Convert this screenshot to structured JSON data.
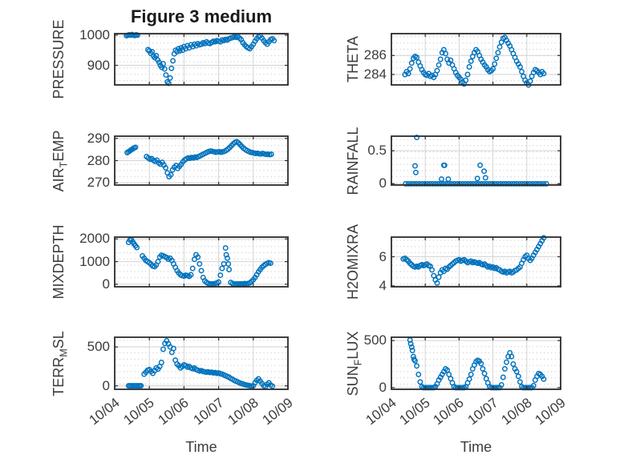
{
  "figure": {
    "title": "Figure 3 medium",
    "xlabel_left": "Time",
    "xlabel_right": "Time",
    "marker_color": "#0072BD",
    "axis_color": "#2b2b2b",
    "major_grid_color": "#d4d4d4",
    "minor_dot_color": "#b9b9b9",
    "xtick_labels": [
      "10/04",
      "10/05",
      "10/06",
      "10/07",
      "10/08",
      "10/09"
    ]
  },
  "chart_data": [
    {
      "name": "pressure",
      "type": "scatter",
      "row": 0,
      "col": 0,
      "label_parts": [
        {
          "t": "PRESSURE",
          "sub": false
        }
      ],
      "yticks": [
        900,
        1000
      ],
      "ylim": [
        835,
        1005
      ],
      "xlim_days": [
        0,
        5
      ],
      "segments": [
        {
          "t0": 0.34,
          "dt": 0.04,
          "y": [
            998,
            1000,
            1001,
            1000,
            1002,
            1000,
            999,
            1001,
            1000
          ]
        },
        {
          "t0": 0.96,
          "dt": 0.04,
          "y": [
            952,
            948,
            940,
            945,
            930,
            925,
            932,
            918,
            910,
            900,
            893,
            905,
            888,
            868,
            845,
            840,
            858,
            890,
            915,
            938,
            950,
            945,
            955,
            948,
            958,
            950
          ]
        },
        {
          "t0": 2.0,
          "dt": 0.05,
          "y": [
            962,
            955,
            965,
            958,
            968,
            962,
            970,
            965,
            972,
            968,
            970,
            975,
            972,
            978,
            974,
            972,
            976,
            980,
            978,
            982
          ]
        },
        {
          "t0": 3.0,
          "dt": 0.05,
          "y": [
            980,
            978,
            984,
            982,
            986,
            984,
            988,
            990,
            992,
            995,
            993,
            996,
            990,
            985,
            975,
            968,
            962,
            958,
            955,
            962
          ]
        },
        {
          "t0": 4.0,
          "dt": 0.05,
          "y": [
            970,
            980,
            988,
            995,
            998,
            990,
            982,
            975,
            970,
            978,
            985,
            988,
            982
          ]
        }
      ],
      "points": []
    },
    {
      "name": "theta",
      "type": "scatter",
      "row": 0,
      "col": 1,
      "label_parts": [
        {
          "t": "THETA",
          "sub": false
        }
      ],
      "yticks": [
        284,
        286
      ],
      "ylim": [
        282.9,
        288.3
      ],
      "xlim_days": [
        0,
        5
      ],
      "segments": [
        {
          "t0": 0.4,
          "dt": 0.05,
          "y": [
            284.0,
            284.3,
            284.1,
            284.6,
            285.2,
            285.7,
            285.9,
            285.8,
            285.3,
            284.9,
            284.5,
            284.2,
            284.0,
            283.9,
            284.1,
            283.8,
            283.9,
            283.7,
            284.0,
            284.4,
            285.0,
            285.6,
            286.3,
            286.6,
            286.2,
            285.6,
            285.2,
            285.5,
            285.0,
            284.6,
            284.2,
            283.9,
            283.7,
            283.5,
            283.2,
            283.0,
            283.4,
            284.0,
            284.8,
            285.4,
            285.9,
            286.3,
            286.6,
            286.4,
            286.0,
            285.6,
            285.3,
            285.0,
            284.8,
            284.5,
            284.3,
            284.4,
            284.6,
            285.1,
            285.7,
            286.3,
            286.9,
            287.4,
            287.8,
            287.9,
            287.6,
            287.3,
            287.0,
            286.6,
            286.2,
            285.8,
            285.4,
            285.1,
            284.8,
            284.3,
            283.8,
            283.4,
            283.1,
            282.9,
            283.3,
            283.8,
            284.2,
            284.5,
            284.4,
            284.2,
            284.0,
            284.3,
            284.1
          ]
        }
      ],
      "points": []
    },
    {
      "name": "air-temp",
      "type": "scatter",
      "row": 1,
      "col": 0,
      "label_parts": [
        {
          "t": "AIR",
          "sub": false
        },
        {
          "t": "T",
          "sub": true
        },
        {
          "t": "EMP",
          "sub": false
        }
      ],
      "yticks": [
        270,
        280,
        290
      ],
      "ylim": [
        269,
        291
      ],
      "xlim_days": [
        0,
        5
      ],
      "segments": [
        {
          "t0": 0.36,
          "dt": 0.04,
          "y": [
            283.6,
            284.0,
            284.4,
            284.9,
            285.3,
            285.7,
            286.0
          ]
        },
        {
          "t0": 0.92,
          "dt": 0.05,
          "y": [
            281.8,
            281.2,
            280.6,
            280.9,
            280.1,
            279.6,
            280.2,
            279.0,
            278.4,
            279.2,
            278.0,
            276.8,
            274.5,
            272.8,
            273.6,
            275.8,
            277.0,
            277.8,
            276.5,
            277.4,
            278.3,
            279.5,
            280.3,
            280.8,
            281.2,
            281.0,
            281.4,
            281.2,
            281.6,
            281.4,
            281.8,
            282.2,
            282.6,
            283.0,
            283.4,
            283.8,
            284.1,
            284.3,
            284.2,
            284.0,
            283.8,
            283.9,
            284.0,
            283.8,
            284.0,
            284.2,
            284.6,
            285.2,
            285.9,
            286.7,
            287.5,
            288.2,
            288.5,
            288.0,
            287.2,
            286.4,
            285.6,
            285.0,
            284.5,
            284.1,
            283.8,
            283.6,
            283.4,
            283.2,
            283.3,
            283.1,
            283.0,
            283.2,
            283.0,
            282.8,
            282.9,
            282.7,
            282.9
          ]
        }
      ],
      "points": []
    },
    {
      "name": "rainfall",
      "type": "scatter",
      "row": 1,
      "col": 1,
      "label_parts": [
        {
          "t": "RAINFALL",
          "sub": false
        }
      ],
      "yticks": [
        0,
        0.5
      ],
      "ylim": [
        -0.02,
        0.72
      ],
      "xlim_days": [
        0,
        5
      ],
      "segments": [
        {
          "t0": 0.42,
          "dt": 0.08,
          "y": [
            0,
            0,
            0,
            0,
            0,
            0,
            0,
            0,
            0,
            0,
            0,
            0,
            0,
            0,
            0,
            0,
            0,
            0,
            0,
            0,
            0,
            0,
            0,
            0,
            0,
            0,
            0,
            0,
            0,
            0,
            0,
            0,
            0,
            0,
            0,
            0,
            0,
            0,
            0,
            0,
            0,
            0,
            0,
            0,
            0,
            0,
            0,
            0,
            0,
            0,
            0,
            0,
            0
          ]
        }
      ],
      "points": [
        [
          0.7,
          0.27
        ],
        [
          0.72,
          0.17
        ],
        [
          0.75,
          0.7
        ],
        [
          1.48,
          0.07
        ],
        [
          1.55,
          0.28
        ],
        [
          1.57,
          0.28
        ],
        [
          1.68,
          0.07
        ],
        [
          2.54,
          0.08
        ],
        [
          2.62,
          0.28
        ],
        [
          2.74,
          0.19
        ],
        [
          2.78,
          0.09
        ]
      ]
    },
    {
      "name": "mixdepth",
      "type": "scatter",
      "row": 2,
      "col": 0,
      "label_parts": [
        {
          "t": "MIXDEPTH",
          "sub": false
        }
      ],
      "yticks": [
        0,
        1000,
        2000
      ],
      "ylim": [
        -110,
        2080
      ],
      "xlim_days": [
        0,
        5
      ],
      "segments": [
        {
          "t0": 0.4,
          "dt": 0.04,
          "y": [
            1850,
            1950,
            1980,
            1870,
            1780,
            1700,
            1620
          ]
        },
        {
          "t0": 0.8,
          "dt": 0.05,
          "y": [
            1250,
            1150,
            1050,
            1000,
            950,
            880,
            800,
            780,
            850,
            1000,
            1200,
            1280,
            1250,
            1220,
            1180,
            1100,
            1150,
            1050,
            900,
            750,
            600,
            500,
            420,
            380,
            360,
            400,
            380,
            350,
            420,
            700,
            1100,
            1300,
            1200,
            900,
            600,
            300,
            150,
            80,
            40,
            20,
            10,
            20,
            30,
            60,
            100,
            400,
            700,
            900
          ]
        },
        {
          "t0": 3.3,
          "dt": 0.05,
          "y": [
            650,
            80,
            30,
            10,
            10,
            20,
            10,
            20,
            10,
            30,
            20,
            40,
            60,
            120,
            200,
            300,
            420,
            550,
            650,
            750,
            820,
            880,
            920,
            950,
            930
          ]
        }
      ],
      "points": [
        [
          3.2,
          1600
        ],
        [
          3.22,
          1300
        ],
        [
          3.25,
          1150
        ],
        [
          3.28,
          900
        ]
      ]
    },
    {
      "name": "h2omixra",
      "type": "scatter",
      "row": 2,
      "col": 1,
      "label_parts": [
        {
          "t": "H2OMIXRA",
          "sub": false
        }
      ],
      "yticks": [
        4,
        6
      ],
      "ylim": [
        3.94,
        7.35
      ],
      "xlim_days": [
        0,
        5
      ],
      "segments": [
        {
          "t0": 0.35,
          "dt": 0.05,
          "y": [
            5.85,
            5.9,
            5.8,
            5.7,
            5.55,
            5.45,
            5.35,
            5.3,
            5.35,
            5.3,
            5.4,
            5.45,
            5.4,
            5.45,
            5.5,
            5.4,
            5.35,
            5.1,
            4.7,
            4.4,
            4.2,
            4.6,
            4.9,
            5.1,
            5.0,
            5.2,
            5.15,
            5.3,
            5.4,
            5.5,
            5.6,
            5.7,
            5.75,
            5.8,
            5.7,
            5.75,
            5.8,
            5.7,
            5.6,
            5.65,
            5.7,
            5.6,
            5.65,
            5.6,
            5.55,
            5.6,
            5.5,
            5.45,
            5.5,
            5.4,
            5.3,
            5.35,
            5.25,
            5.3,
            5.2,
            5.25,
            5.15,
            5.1,
            5.0,
            4.95,
            5.0,
            4.9,
            4.95,
            5.0,
            4.9,
            4.95,
            5.05,
            5.1,
            5.2,
            5.3,
            5.55,
            5.8,
            6.0,
            6.1,
            5.9,
            5.75,
            5.9,
            6.1,
            6.3,
            6.5,
            6.7,
            6.9,
            7.1,
            7.3
          ]
        }
      ],
      "points": []
    },
    {
      "name": "terr-msl",
      "type": "scatter",
      "row": 3,
      "col": 0,
      "label_parts": [
        {
          "t": "TERR",
          "sub": false
        },
        {
          "t": "M",
          "sub": true
        },
        {
          "t": "SL",
          "sub": false
        }
      ],
      "yticks": [
        0,
        500
      ],
      "ylim": [
        -45,
        625
      ],
      "xlim_days": [
        0,
        5
      ],
      "segments": [
        {
          "t0": 0.4,
          "dt": 0.04,
          "y": [
            0,
            0,
            0,
            0,
            0,
            0,
            0,
            0,
            0,
            0
          ]
        },
        {
          "t0": 0.85,
          "dt": 0.05,
          "y": [
            150,
            175,
            200,
            210,
            185,
            160,
            195,
            230,
            215,
            250,
            300,
            470,
            545,
            580,
            540,
            500,
            430,
            480,
            330,
            280,
            260,
            230,
            250,
            270,
            260,
            240,
            250,
            230,
            220,
            230,
            210,
            200,
            190,
            195,
            185,
            180,
            175,
            180,
            170,
            175,
            165,
            170,
            160,
            165,
            155,
            150,
            140,
            130,
            120,
            110,
            95,
            85,
            70,
            60,
            50,
            40,
            30,
            25,
            15,
            10,
            5,
            0,
            -5,
            0,
            40,
            70,
            90,
            60,
            30,
            0,
            -10,
            20,
            40,
            10,
            -5
          ]
        }
      ],
      "points": []
    },
    {
      "name": "sun-flux",
      "type": "scatter",
      "row": 3,
      "col": 1,
      "label_parts": [
        {
          "t": "SUN",
          "sub": false
        },
        {
          "t": "F",
          "sub": true
        },
        {
          "t": "LUX",
          "sub": false
        }
      ],
      "yticks": [
        0,
        500
      ],
      "ylim": [
        -18,
        535
      ],
      "xlim_days": [
        0,
        5
      ],
      "segments": [
        {
          "t0": 0.55,
          "dt": 0.05,
          "y": [
            505,
            430,
            330,
            285,
            230,
            140,
            60,
            10,
            0,
            0,
            0,
            0,
            0,
            0,
            0,
            10,
            40,
            80,
            110,
            140,
            170,
            200,
            185,
            140,
            95,
            50,
            10,
            0,
            0,
            0,
            0,
            0,
            0,
            10,
            50,
            90,
            140,
            200,
            240,
            275,
            290,
            280,
            255,
            200,
            150,
            95,
            50,
            10,
            0,
            0,
            0,
            0,
            0,
            0,
            30,
            110,
            200,
            270,
            330,
            370,
            330,
            250,
            200,
            170,
            120,
            60,
            10,
            0,
            0,
            0,
            0,
            0,
            0,
            20,
            80,
            120,
            150,
            140,
            120,
            90
          ]
        }
      ],
      "points": [
        [
          0.57,
          465
        ],
        [
          0.62,
          395
        ],
        [
          0.67,
          300
        ]
      ]
    }
  ]
}
